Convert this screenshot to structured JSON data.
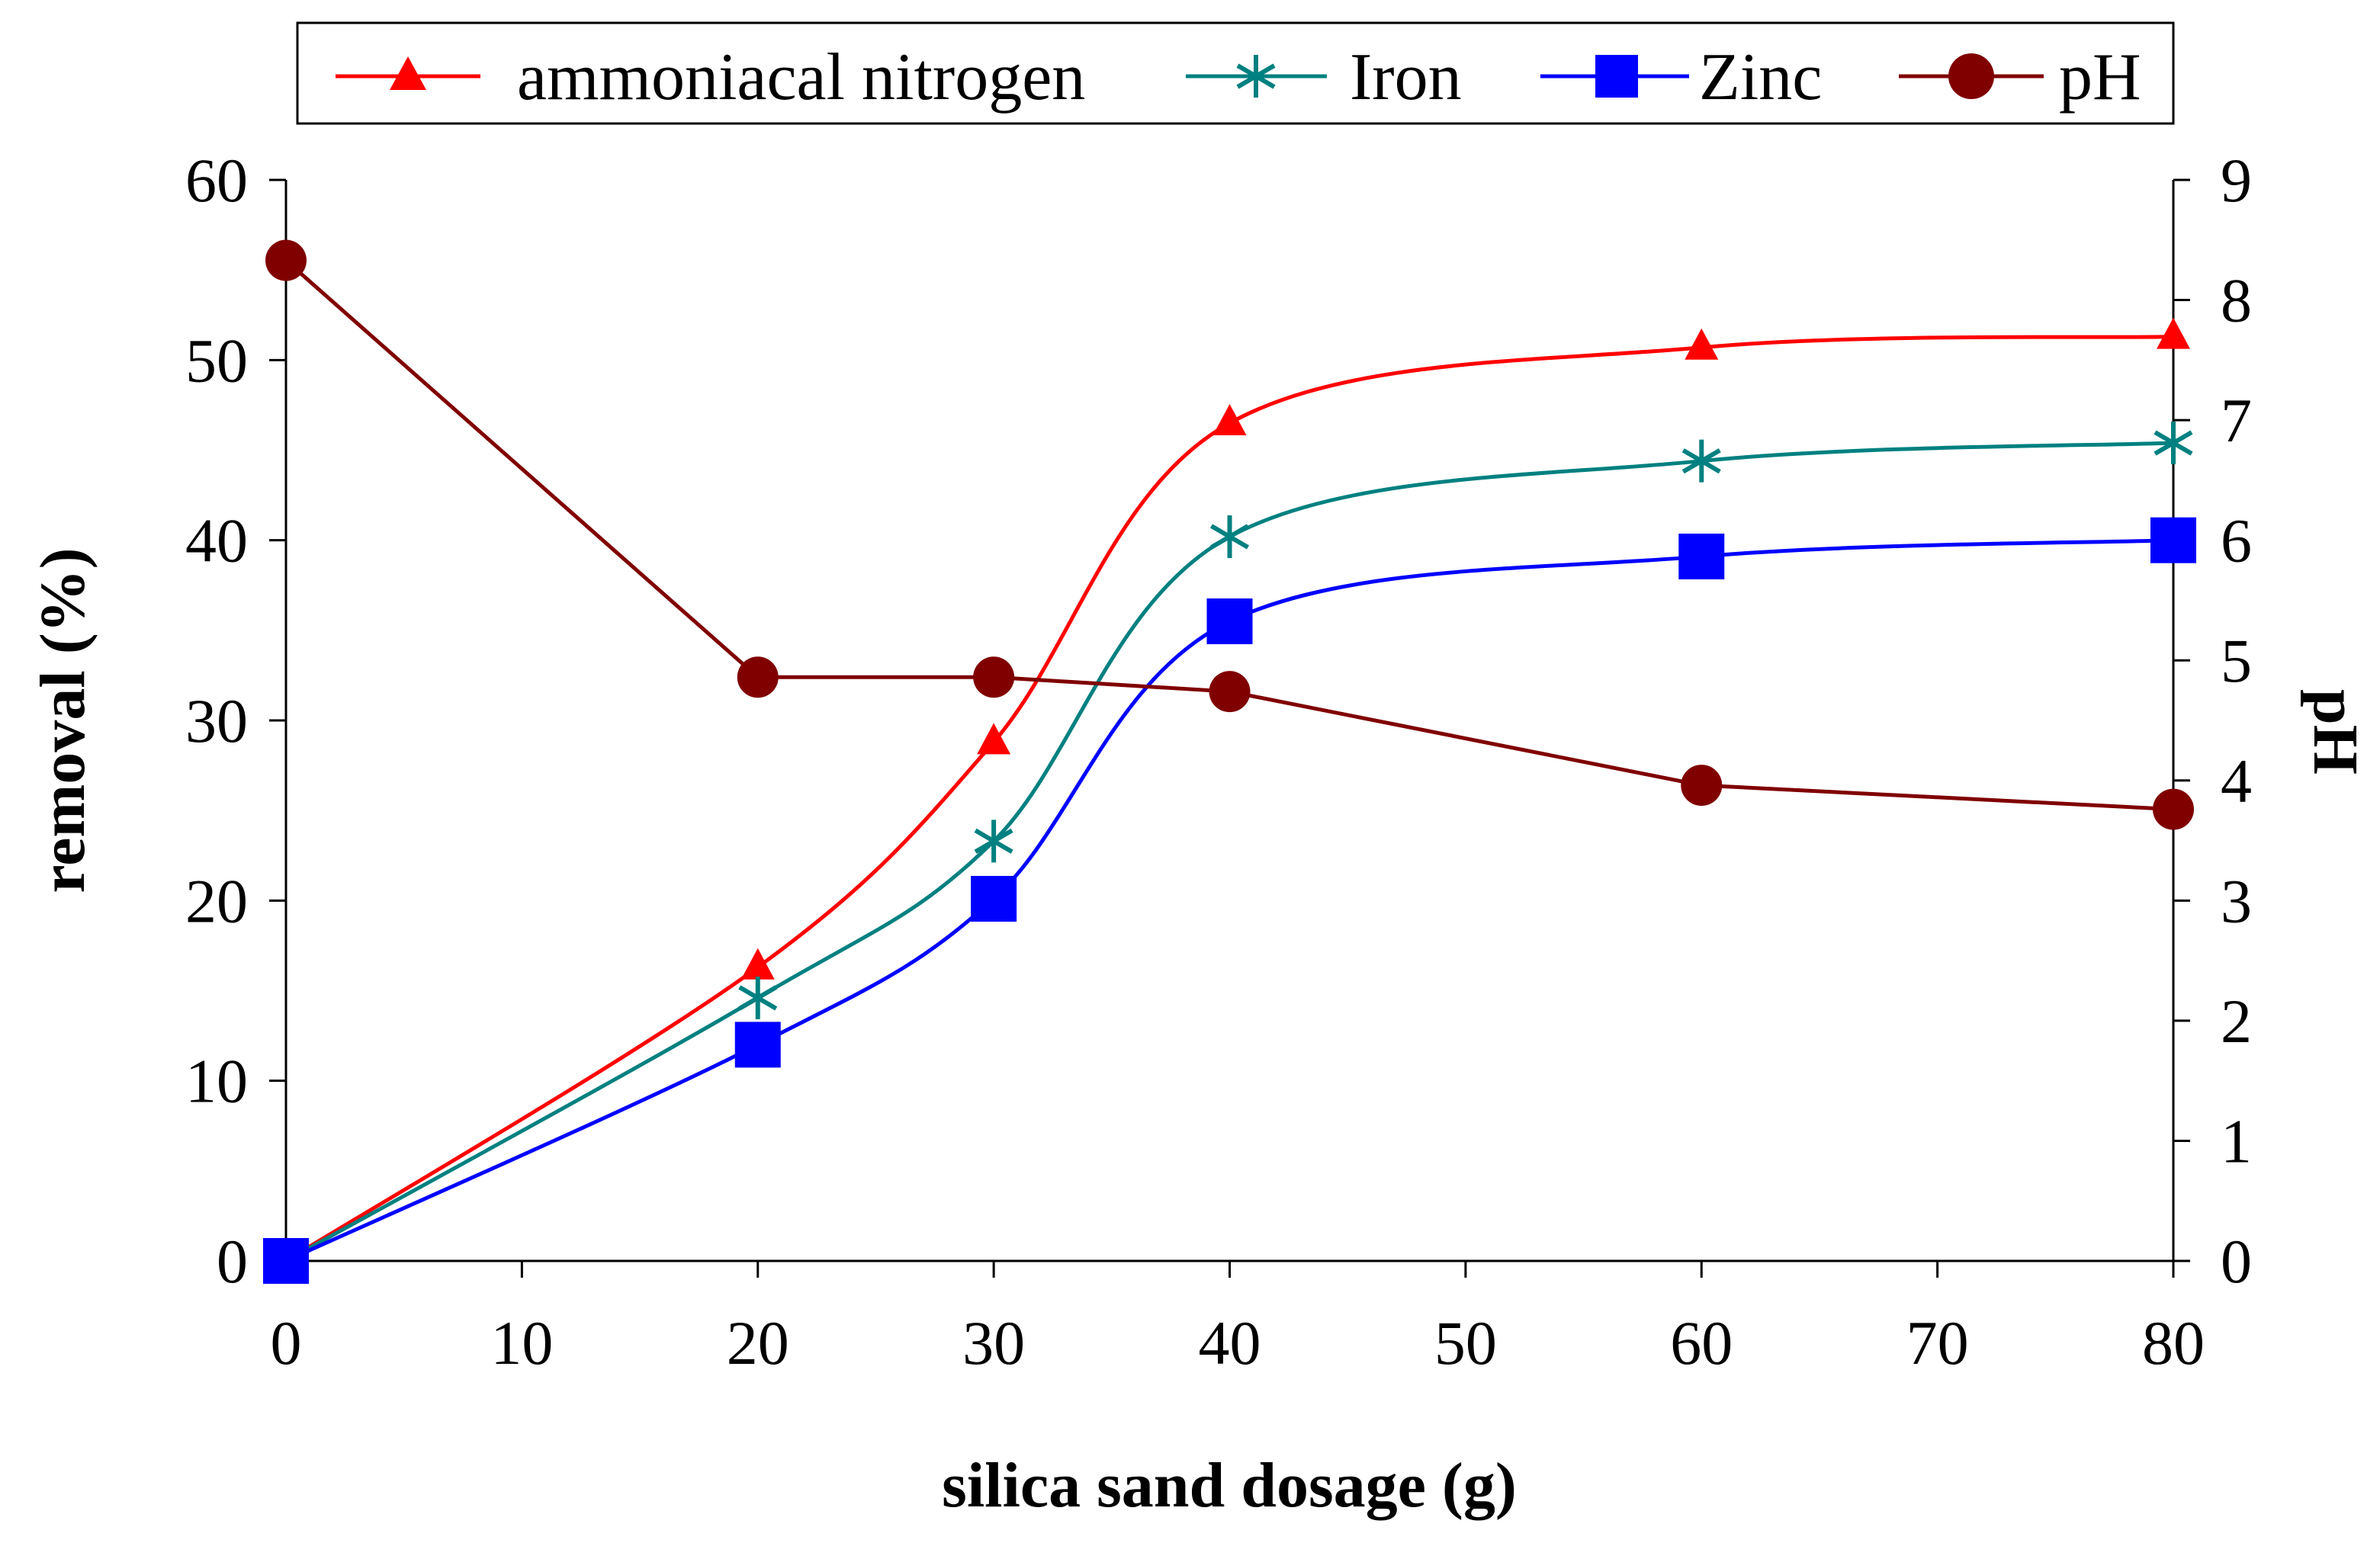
{
  "chart_data": {
    "type": "line",
    "x": [
      0,
      20,
      30,
      40,
      60,
      80
    ],
    "xlabel": "silica sand dosage (g)",
    "ylabel": "removal (%)",
    "y2label": "pH",
    "xlim": [
      0,
      80
    ],
    "ylim": [
      0,
      60
    ],
    "y2lim": [
      0,
      9
    ],
    "xticks": [
      "0",
      "10",
      "20",
      "30",
      "40",
      "50",
      "60",
      "70",
      "80"
    ],
    "yticks": [
      "0",
      "10",
      "20",
      "30",
      "40",
      "50",
      "60"
    ],
    "y2ticks": [
      "0",
      "1",
      "2",
      "3",
      "4",
      "5",
      "6",
      "7",
      "8",
      "9"
    ],
    "grid": false,
    "legend_position": "top",
    "series": [
      {
        "name": "ammoniacal nitrogen",
        "axis": "left",
        "marker": "triangle",
        "color": "#ff0000",
        "values": [
          0,
          16.3,
          28.8,
          46.5,
          50.7,
          51.3
        ]
      },
      {
        "name": "Iron",
        "axis": "left",
        "marker": "asterisk",
        "color": "#008080",
        "values": [
          0,
          14.6,
          23.3,
          40.2,
          44.4,
          45.4
        ]
      },
      {
        "name": "Zinc",
        "axis": "left",
        "marker": "square",
        "color": "#0000ff",
        "values": [
          0,
          12,
          20.1,
          35.5,
          39.1,
          40
        ]
      },
      {
        "name": "pH",
        "axis": "right",
        "marker": "circle",
        "color": "#800000",
        "values": [
          8.33,
          4.86,
          4.86,
          4.74,
          3.96,
          3.76
        ]
      }
    ]
  }
}
